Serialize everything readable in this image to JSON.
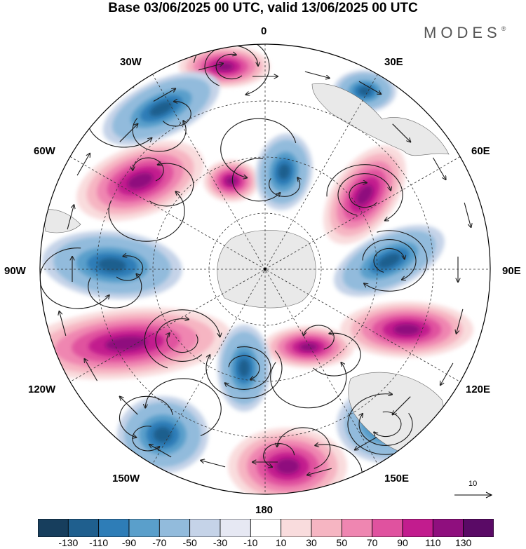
{
  "title": "Base 03/06/2025 00 UTC, valid 13/06/2025 00 UTC",
  "brand": {
    "name": "MODES",
    "mark": "®"
  },
  "map": {
    "projection": "south-polar-stereographic",
    "longitude_labels": {
      "top": "0",
      "top_right_30": "30E",
      "right_60": "60E",
      "right": "90E",
      "right_120": "120E",
      "bottom_right_150": "150E",
      "bottom": "180",
      "bottom_left_150": "150W",
      "left_120": "120W",
      "left": "90W",
      "left_60": "60W",
      "top_left_30": "30W"
    },
    "field_type": "filled-contours-with-streamlines",
    "reference_vector": {
      "value": "10"
    }
  },
  "colorbar": {
    "colors": [
      "#173e5d",
      "#1f5f8e",
      "#2e7db7",
      "#5a9fcb",
      "#92bbdc",
      "#c5d3e8",
      "#e6e8f3",
      "#ffffff",
      "#f9dcdd",
      "#f6b5c2",
      "#ef86b1",
      "#e0529f",
      "#c21c8e",
      "#8f0f7e",
      "#5a0a66"
    ],
    "labels": [
      "-130",
      "-110",
      "-90",
      "-70",
      "-50",
      "-30",
      "-10",
      "10",
      "30",
      "50",
      "70",
      "90",
      "110",
      "130"
    ]
  }
}
